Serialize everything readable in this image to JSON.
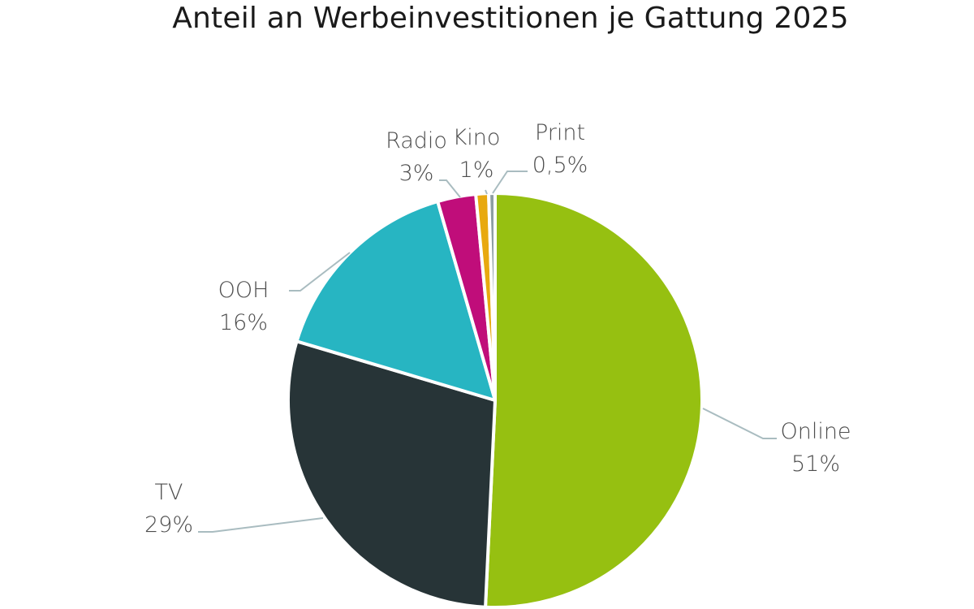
{
  "chart_data": {
    "type": "pie",
    "title": "Anteil an Werbeinvestitionen je Gattung 2025",
    "slices": [
      {
        "name": "Online",
        "value": 51,
        "value_label": "51%",
        "color": "#96c011"
      },
      {
        "name": "TV",
        "value": 29,
        "value_label": "29%",
        "color": "#273437"
      },
      {
        "name": "OOH",
        "value": 16,
        "value_label": "16%",
        "color": "#27b5c2"
      },
      {
        "name": "Radio",
        "value": 3,
        "value_label": "3%",
        "color": "#c00d7a"
      },
      {
        "name": "Kino",
        "value": 1,
        "value_label": "1%",
        "color": "#e8a90f"
      },
      {
        "name": "Print",
        "value": 0.5,
        "value_label": "0,5%",
        "color": "#8d9ea3"
      }
    ],
    "start_angle": "12 o'clock",
    "direction": "clockwise",
    "leader_line_color": "#a9bcc0",
    "slice_border_color": "#ffffff"
  }
}
